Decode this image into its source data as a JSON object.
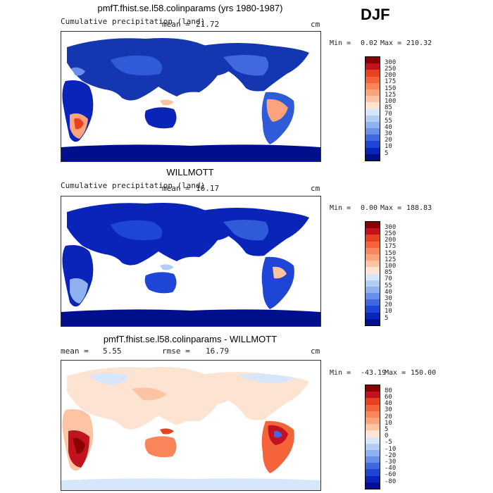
{
  "season": "DJF",
  "units_label": "cm",
  "panels": [
    {
      "title": "pmfT.fhist.se.l58.colinparams (yrs 1980-1987)",
      "subtitle": "Cumulative precipitation (land)",
      "stat1_label": "mean =",
      "stat1_value": "21.72",
      "min_label": "Min =",
      "min_value": "0.02",
      "max_label": "Max =",
      "max_value": "210.32",
      "colorbar_levels": [
        "300",
        "250",
        "200",
        "175",
        "150",
        "125",
        "100",
        "85",
        "70",
        "55",
        "40",
        "30",
        "20",
        "10",
        "5"
      ],
      "colorbar_colors": [
        "#8b0000",
        "#c1121f",
        "#e8411f",
        "#f5633a",
        "#f9855b",
        "#fba47c",
        "#fcc4a2",
        "#fde4d2",
        "#d6e6fb",
        "#b4cdf7",
        "#8fb1f0",
        "#6890e8",
        "#4268e0",
        "#1f45d6",
        "#0a23b8",
        "#000f8c"
      ]
    },
    {
      "title": "WILLMOTT",
      "subtitle": "Cumulative precipitation (land)",
      "stat1_label": "mean =",
      "stat1_value": "16.17",
      "min_label": "Min =",
      "min_value": "0.00",
      "max_label": "Max =",
      "max_value": "188.83",
      "colorbar_levels": [
        "300",
        "250",
        "200",
        "175",
        "150",
        "125",
        "100",
        "85",
        "70",
        "55",
        "40",
        "30",
        "20",
        "10",
        "5"
      ],
      "colorbar_colors": [
        "#8b0000",
        "#c1121f",
        "#e8411f",
        "#f5633a",
        "#f9855b",
        "#fba47c",
        "#fcc4a2",
        "#fde4d2",
        "#d6e6fb",
        "#b4cdf7",
        "#8fb1f0",
        "#6890e8",
        "#4268e0",
        "#1f45d6",
        "#0a23b8",
        "#000f8c"
      ]
    },
    {
      "title": "pmfT.fhist.se.l58.colinparams - WILLMOTT",
      "stat1_label": "mean =",
      "stat1_value": "5.55",
      "stat2_label": "rmse =",
      "stat2_value": "16.79",
      "min_label": "Min =",
      "min_value": "-43.19",
      "max_label": "Max =",
      "max_value": "150.00",
      "colorbar_levels": [
        "80",
        "60",
        "40",
        "30",
        "20",
        "10",
        "5",
        "0",
        "-5",
        "-10",
        "-20",
        "-30",
        "-40",
        "-60",
        "-80"
      ],
      "colorbar_colors": [
        "#8b0000",
        "#c1121f",
        "#e8411f",
        "#f5633a",
        "#f9855b",
        "#fba47c",
        "#fcc4a2",
        "#fde4d2",
        "#d6e6fb",
        "#b4cdf7",
        "#8fb1f0",
        "#6890e8",
        "#4268e0",
        "#1f45d6",
        "#0a23b8",
        "#000f8c"
      ]
    }
  ]
}
